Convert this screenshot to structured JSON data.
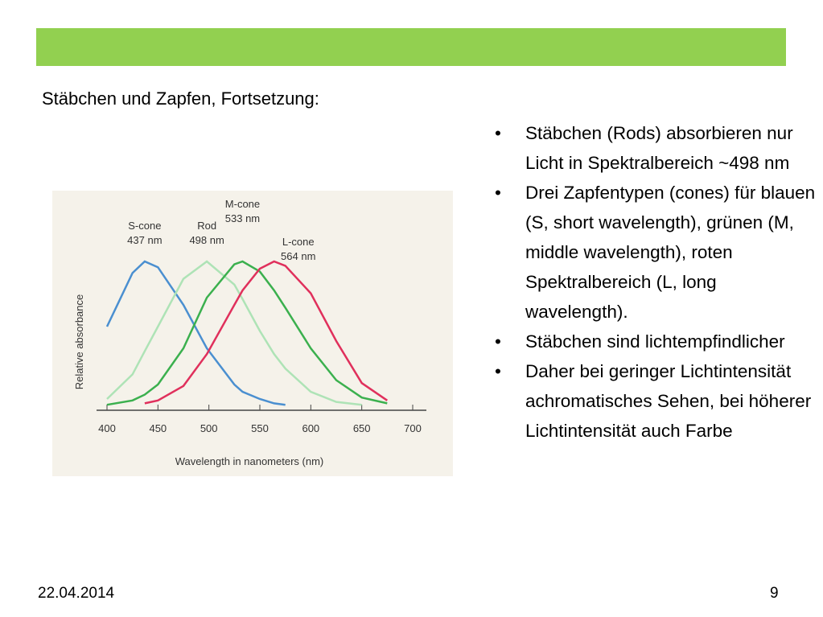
{
  "title": "Stäbchen und Zapfen, Fortsetzung:",
  "bullets": [
    "Stäbchen (Rods) absorbieren nur Licht in Spektralbereich ~498 nm",
    "Drei Zapfentypen (cones) für blauen (S, short wavelength), grünen (M, middle wavelength), roten Spektralbereich (L, long wavelength).",
    "Stäbchen sind lichtempfindlicher",
    "Daher bei geringer Lichtintensität achromatisches Sehen, bei höherer Lichtintensität auch Farbe"
  ],
  "footer": {
    "date": "22.04.2014",
    "page": "9"
  },
  "chart_data": {
    "type": "line",
    "xlabel": "Wavelength in nanometers (nm)",
    "ylabel": "Relative absorbance",
    "x": [
      400,
      425,
      437,
      450,
      475,
      498,
      525,
      533,
      550,
      564,
      575,
      600,
      625,
      650,
      675,
      700
    ],
    "xlim": [
      400,
      700
    ],
    "xticks": [
      400,
      450,
      500,
      550,
      600,
      650,
      700
    ],
    "ylim": [
      0,
      1.05
    ],
    "series": [
      {
        "name": "S-cone",
        "peak_label": "437 nm",
        "color": "#4a8fd0",
        "values": [
          0.55,
          0.92,
          1,
          0.96,
          0.7,
          0.4,
          0.15,
          0.1,
          0.05,
          0.02,
          0.01,
          null,
          null,
          null,
          null,
          null
        ]
      },
      {
        "name": "Rod",
        "peak_label": "498 nm",
        "color": "#aee3b6",
        "values": [
          0.05,
          0.22,
          0.38,
          0.55,
          0.88,
          1,
          0.84,
          0.74,
          0.52,
          0.36,
          0.26,
          0.1,
          0.03,
          0.01,
          null,
          null
        ]
      },
      {
        "name": "M-cone",
        "peak_label": "533 nm",
        "color": "#3bb04e",
        "values": [
          0.01,
          0.04,
          0.08,
          0.15,
          0.4,
          0.75,
          0.98,
          1,
          0.93,
          0.8,
          0.68,
          0.4,
          0.18,
          0.06,
          0.02,
          null
        ]
      },
      {
        "name": "L-cone",
        "peak_label": "564 nm",
        "color": "#e0305c",
        "values": [
          null,
          null,
          0.02,
          0.04,
          0.14,
          0.36,
          0.7,
          0.8,
          0.95,
          1,
          0.97,
          0.78,
          0.45,
          0.16,
          0.04,
          null
        ]
      }
    ]
  }
}
